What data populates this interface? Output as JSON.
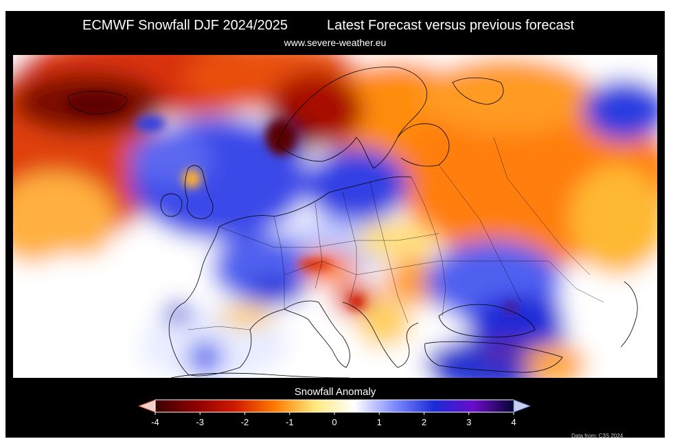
{
  "header": {
    "title_left": "ECMWF Snowfall DJF 2024/2025",
    "title_right": "Latest Forecast versus previous forecast",
    "url": "www.severe-weather.eu"
  },
  "map": {
    "region": "Europe",
    "anomaly_regions": [
      {
        "name": "north-atlantic-deficit",
        "anomaly": -3
      },
      {
        "name": "iceland-deficit",
        "anomaly": -4
      },
      {
        "name": "norway-coast-deficit",
        "anomaly": -4
      },
      {
        "name": "scandinavia-deficit",
        "anomaly": -2
      },
      {
        "name": "eastern-europe-russia-deficit",
        "anomaly": -2
      },
      {
        "name": "siberia-east-surplus",
        "anomaly": 1.5
      },
      {
        "name": "north-sea-britain-surplus",
        "anomaly": 1.5
      },
      {
        "name": "baltic-poland-surplus",
        "anomaly": 1.5
      },
      {
        "name": "ukraine-black-sea-surplus",
        "anomaly": 1.5
      },
      {
        "name": "turkey-surplus",
        "anomaly": 2
      },
      {
        "name": "alps-deficit",
        "anomaly": -2
      },
      {
        "name": "balkans-deficit",
        "anomaly": -2
      },
      {
        "name": "iberia-mixed",
        "anomaly": 0.5
      }
    ]
  },
  "legend": {
    "title": "Snowfall Anomaly",
    "ticks": [
      "-4",
      "-3",
      "-2",
      "-1",
      "0",
      "1",
      "2",
      "3",
      "4"
    ],
    "min": -4,
    "max": 4,
    "colors": [
      "#3a0000",
      "#8b0000",
      "#d01a00",
      "#ff7a00",
      "#ffe97a",
      "#ffffff",
      "#7f8cff",
      "#1b2bd6",
      "#6a0cc8",
      "#050530"
    ]
  },
  "credit": "Data from: C3S 2024"
}
